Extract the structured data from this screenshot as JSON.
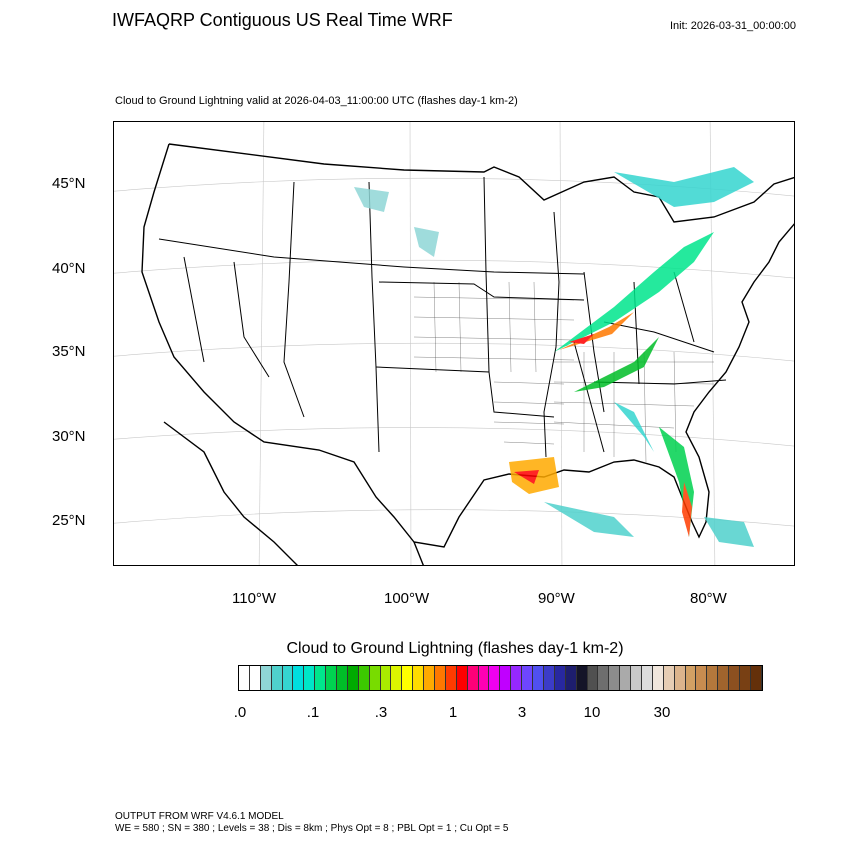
{
  "header": {
    "title": "IWFAQRP Contiguous US Real Time WRF",
    "init": "Init: 2026-03-31_00:00:00",
    "subtitle": "Cloud to Ground Lightning valid at 2026-04-03_11:00:00 UTC   (flashes day-1 km-2)"
  },
  "map": {
    "lat_labels": [
      "45°N",
      "40°N",
      "35°N",
      "30°N",
      "25°N"
    ],
    "lon_labels": [
      "110°W",
      "100°W",
      "90°W",
      "80°W"
    ]
  },
  "colorbar": {
    "title": "Cloud to Ground Lightning  (flashes day-1 km-2)",
    "labels": [
      ".0",
      ".1",
      ".3",
      "1",
      "3",
      "10",
      "30"
    ],
    "colors": [
      "#ffffff",
      "#ffffff",
      "#8fd6d6",
      "#4fd1cc",
      "#35d5d0",
      "#00dede",
      "#00e6c8",
      "#00e68c",
      "#00d250",
      "#00be28",
      "#00aa00",
      "#3cc800",
      "#78dc00",
      "#aaeb00",
      "#dcf500",
      "#ffff00",
      "#ffdc00",
      "#ffaa00",
      "#ff7800",
      "#ff3c00",
      "#ff0000",
      "#ff0078",
      "#ff00b4",
      "#f000f0",
      "#c000ff",
      "#9628ff",
      "#6e46ff",
      "#5050f0",
      "#3c3cc8",
      "#2828a0",
      "#1e1e6e",
      "#141428",
      "#505050",
      "#6e6e6e",
      "#8c8c8c",
      "#aaaaaa",
      "#c8c8c8",
      "#dcdcdc",
      "#f0e6dc",
      "#e6cdb4",
      "#dcb48c",
      "#d2a064",
      "#c88c50",
      "#b4783c",
      "#a0642d",
      "#8c5020",
      "#784014",
      "#64300a"
    ]
  },
  "footer": {
    "line1": "OUTPUT FROM WRF V4.6.1 MODEL",
    "line2": "WE = 580 ; SN = 380 ; Levels = 38 ; Dis = 8km ; Phys Opt = 8 ; PBL Opt = 1 ; Cu Opt = 5"
  }
}
